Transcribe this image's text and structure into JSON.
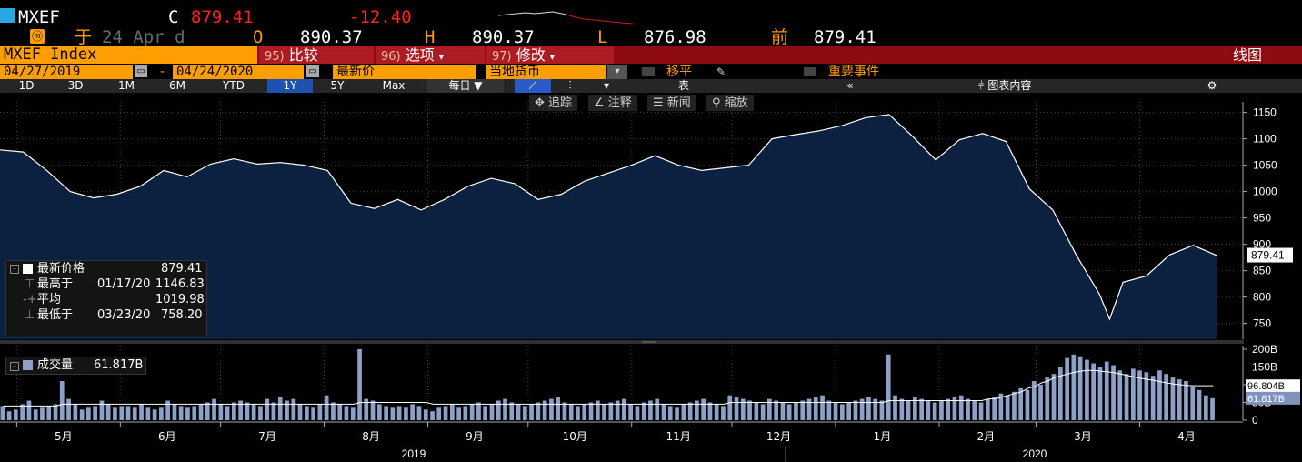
{
  "header": {
    "ticker": "MXEF",
    "c_label": "C",
    "last": "879.41",
    "change": "-12.40",
    "as_of_prefix": "于",
    "as_of_date": "24 Apr d",
    "open_label": "O",
    "open": "890.37",
    "high_label": "H",
    "high": "890.37",
    "low_label": "L",
    "low": "876.98",
    "prev_label": "前",
    "prev": "879.41"
  },
  "commandbar": {
    "security": "MXEF Index",
    "compare_num": "95)",
    "compare_label": "比较",
    "options_num": "96)",
    "options_label": "选项",
    "edit_num": "97)",
    "edit_label": "修改",
    "view_label": "线图"
  },
  "inputs": {
    "start_date": "04/27/2019",
    "dash": "-",
    "end_date": "04/24/2020",
    "field": "最新价",
    "currency": "当地货币",
    "move_avg": "移平",
    "events": "重要事件"
  },
  "periods": {
    "items": [
      "1D",
      "3D",
      "1M",
      "6M",
      "YTD",
      "1Y",
      "5Y",
      "Max"
    ],
    "selected": "1Y",
    "freq": "每日",
    "table": "表",
    "collapse": "《《",
    "chart_content": "图表内容"
  },
  "tools": {
    "track": "追踪",
    "annotate": "注释",
    "news": "新闻",
    "zoom": "缩放"
  },
  "stats": {
    "last_label": "最新价格",
    "last_value": "879.41",
    "high_label": "最高于",
    "high_date": "01/17/20",
    "high_value": "1146.83",
    "avg_label": "平均",
    "avg_value": "1019.98",
    "low_label": "最低于",
    "low_date": "03/23/20",
    "low_value": "758.20"
  },
  "volume": {
    "label": "成交量",
    "value": "61.817B",
    "avg_value": "96.804B"
  },
  "colors": {
    "accent_orange": "#ff9e00",
    "command_red": "#8c0c12",
    "price_red": "#ff2020",
    "area_fill": "#0c2140",
    "volume_bar": "#8da1c8"
  },
  "chart_data": [
    {
      "type": "area",
      "title": "",
      "ylabel": "",
      "ylim": [
        720,
        1170
      ],
      "yticks": [
        750,
        800,
        850,
        900,
        950,
        1000,
        1050,
        1100,
        1150
      ],
      "current_label": "879.41",
      "series": [
        {
          "x": [
            "2019-04-26",
            "2019-05-03",
            "2019-05-10",
            "2019-05-17",
            "2019-05-24",
            "2019-05-31",
            "2019-06-07",
            "2019-06-14",
            "2019-06-21",
            "2019-06-28",
            "2019-07-05",
            "2019-07-12",
            "2019-07-19",
            "2019-07-26",
            "2019-08-02",
            "2019-08-09",
            "2019-08-16",
            "2019-08-23",
            "2019-08-30",
            "2019-09-06",
            "2019-09-13",
            "2019-09-20",
            "2019-09-27",
            "2019-10-04",
            "2019-10-11",
            "2019-10-18",
            "2019-10-25",
            "2019-11-01",
            "2019-11-08",
            "2019-11-15",
            "2019-11-22",
            "2019-11-29",
            "2019-12-06",
            "2019-12-13",
            "2019-12-20",
            "2019-12-27",
            "2020-01-03",
            "2020-01-10",
            "2020-01-17",
            "2020-01-24",
            "2020-01-31",
            "2020-02-07",
            "2020-02-14",
            "2020-02-21",
            "2020-02-28",
            "2020-03-06",
            "2020-03-13",
            "2020-03-20",
            "2020-03-23",
            "2020-03-27",
            "2020-04-03",
            "2020-04-10",
            "2020-04-17",
            "2020-04-24"
          ],
          "values": [
            1079,
            1075,
            1040,
            1000,
            988,
            995,
            1010,
            1040,
            1028,
            1052,
            1062,
            1052,
            1055,
            1050,
            1040,
            978,
            968,
            985,
            965,
            985,
            1010,
            1025,
            1015,
            985,
            995,
            1020,
            1035,
            1050,
            1068,
            1050,
            1040,
            1045,
            1050,
            1100,
            1108,
            1115,
            1125,
            1140,
            1146,
            1105,
            1060,
            1098,
            1110,
            1095,
            1005,
            965,
            880,
            805,
            758,
            828,
            840,
            880,
            898,
            879
          ]
        }
      ]
    },
    {
      "type": "bar",
      "title": "",
      "ylim": [
        0,
        210
      ],
      "yticks": [
        "0",
        "50B",
        "100B",
        "150B",
        "200B"
      ],
      "xlabels": [
        "5月",
        "6月",
        "7月",
        "8月",
        "9月",
        "10月",
        "11月",
        "12月",
        "1月",
        "2月",
        "3月",
        "4月"
      ],
      "year_labels": [
        "2019",
        "2020"
      ],
      "series": [
        {
          "name": "成交量",
          "values": [
            40,
            25,
            30,
            45,
            55,
            30,
            35,
            40,
            45,
            110,
            60,
            45,
            30,
            35,
            40,
            55,
            45,
            35,
            40,
            40,
            35,
            45,
            35,
            30,
            35,
            55,
            45,
            40,
            35,
            40,
            45,
            50,
            60,
            45,
            40,
            50,
            55,
            50,
            45,
            40,
            60,
            50,
            65,
            55,
            60,
            45,
            40,
            35,
            45,
            70,
            50,
            45,
            40,
            35,
            200,
            60,
            55,
            45,
            40,
            35,
            40,
            35,
            45,
            40,
            30,
            25,
            35,
            40,
            45,
            35,
            40,
            45,
            50,
            40,
            45,
            55,
            60,
            50,
            45,
            40,
            45,
            50,
            55,
            60,
            65,
            50,
            45,
            40,
            45,
            50,
            55,
            45,
            50,
            55,
            60,
            45,
            40,
            50,
            55,
            60,
            45,
            40,
            35,
            45,
            50,
            55,
            60,
            50,
            45,
            40,
            70,
            65,
            60,
            55,
            50,
            45,
            60,
            55,
            50,
            45,
            50,
            55,
            60,
            65,
            70,
            55,
            50,
            45,
            50,
            55,
            60,
            65,
            60,
            55,
            185,
            70,
            60,
            55,
            65,
            60,
            55,
            50,
            55,
            60,
            65,
            70,
            60,
            55,
            50,
            60,
            65,
            75,
            70,
            80,
            90,
            85,
            110,
            100,
            120,
            130,
            150,
            175,
            185,
            180,
            170,
            160,
            150,
            165,
            155,
            140,
            130,
            145,
            140,
            135,
            125,
            140,
            130,
            120,
            115,
            110,
            95,
            85,
            70,
            62
          ]
        },
        {
          "name": "平均",
          "values": [
            40,
            40,
            40,
            40,
            40,
            40,
            40,
            40,
            40,
            45,
            45,
            45,
            45,
            45,
            45,
            45,
            45,
            45,
            45,
            45,
            45,
            45,
            45,
            45,
            45,
            45,
            45,
            45,
            45,
            45,
            45,
            45,
            45,
            45,
            45,
            45,
            45,
            45,
            45,
            45,
            45,
            45,
            45,
            45,
            45,
            45,
            45,
            45,
            45,
            45,
            45,
            45,
            45,
            45,
            50,
            50,
            50,
            50,
            50,
            50,
            50,
            50,
            50,
            50,
            50,
            45,
            45,
            45,
            45,
            45,
            45,
            45,
            45,
            45,
            45,
            45,
            45,
            45,
            45,
            45,
            45,
            45,
            45,
            45,
            45,
            45,
            45,
            45,
            45,
            45,
            45,
            45,
            45,
            45,
            45,
            45,
            45,
            45,
            45,
            45,
            45,
            45,
            45,
            45,
            45,
            45,
            45,
            45,
            45,
            45,
            50,
            50,
            50,
            50,
            50,
            50,
            50,
            50,
            50,
            50,
            50,
            50,
            50,
            50,
            50,
            50,
            50,
            50,
            50,
            50,
            50,
            50,
            50,
            50,
            55,
            55,
            55,
            55,
            55,
            55,
            55,
            55,
            55,
            55,
            55,
            55,
            55,
            55,
            55,
            60,
            60,
            65,
            70,
            75,
            80,
            90,
            95,
            105,
            110,
            120,
            125,
            130,
            135,
            138,
            140,
            140,
            138,
            136,
            134,
            130,
            126,
            122,
            118,
            115,
            112,
            108,
            105,
            102,
            100,
            98,
            97,
            97,
            97,
            97
          ]
        }
      ]
    }
  ]
}
